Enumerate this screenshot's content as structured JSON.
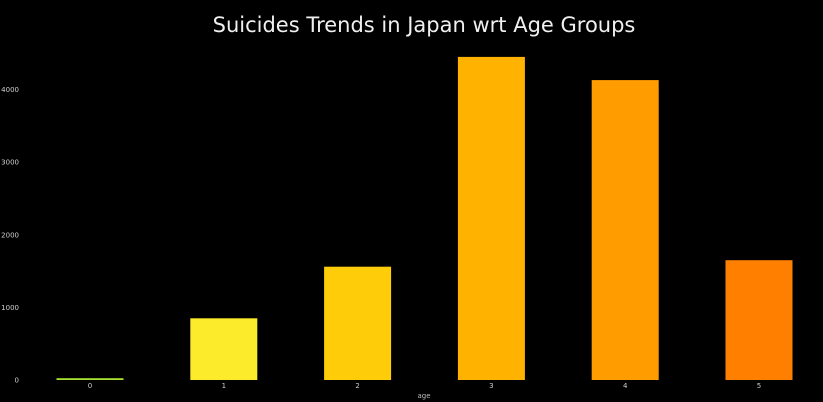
{
  "chart_data": {
    "type": "bar",
    "title": "Suicides Trends in Japan wrt Age Groups",
    "xlabel": "age",
    "ylabel": "",
    "categories": [
      "0",
      "1",
      "2",
      "3",
      "4",
      "5"
    ],
    "values": [
      25,
      850,
      1560,
      4450,
      4130,
      1650
    ],
    "ylim": [
      0,
      4600
    ],
    "yticks": [
      0,
      1000,
      2000,
      3000,
      4000
    ],
    "colors": [
      "#a6e22e",
      "#fbeb2b",
      "#ffcc0a",
      "#ffb300",
      "#ff9d00",
      "#ff8000"
    ],
    "grid": false,
    "legend": "none"
  }
}
